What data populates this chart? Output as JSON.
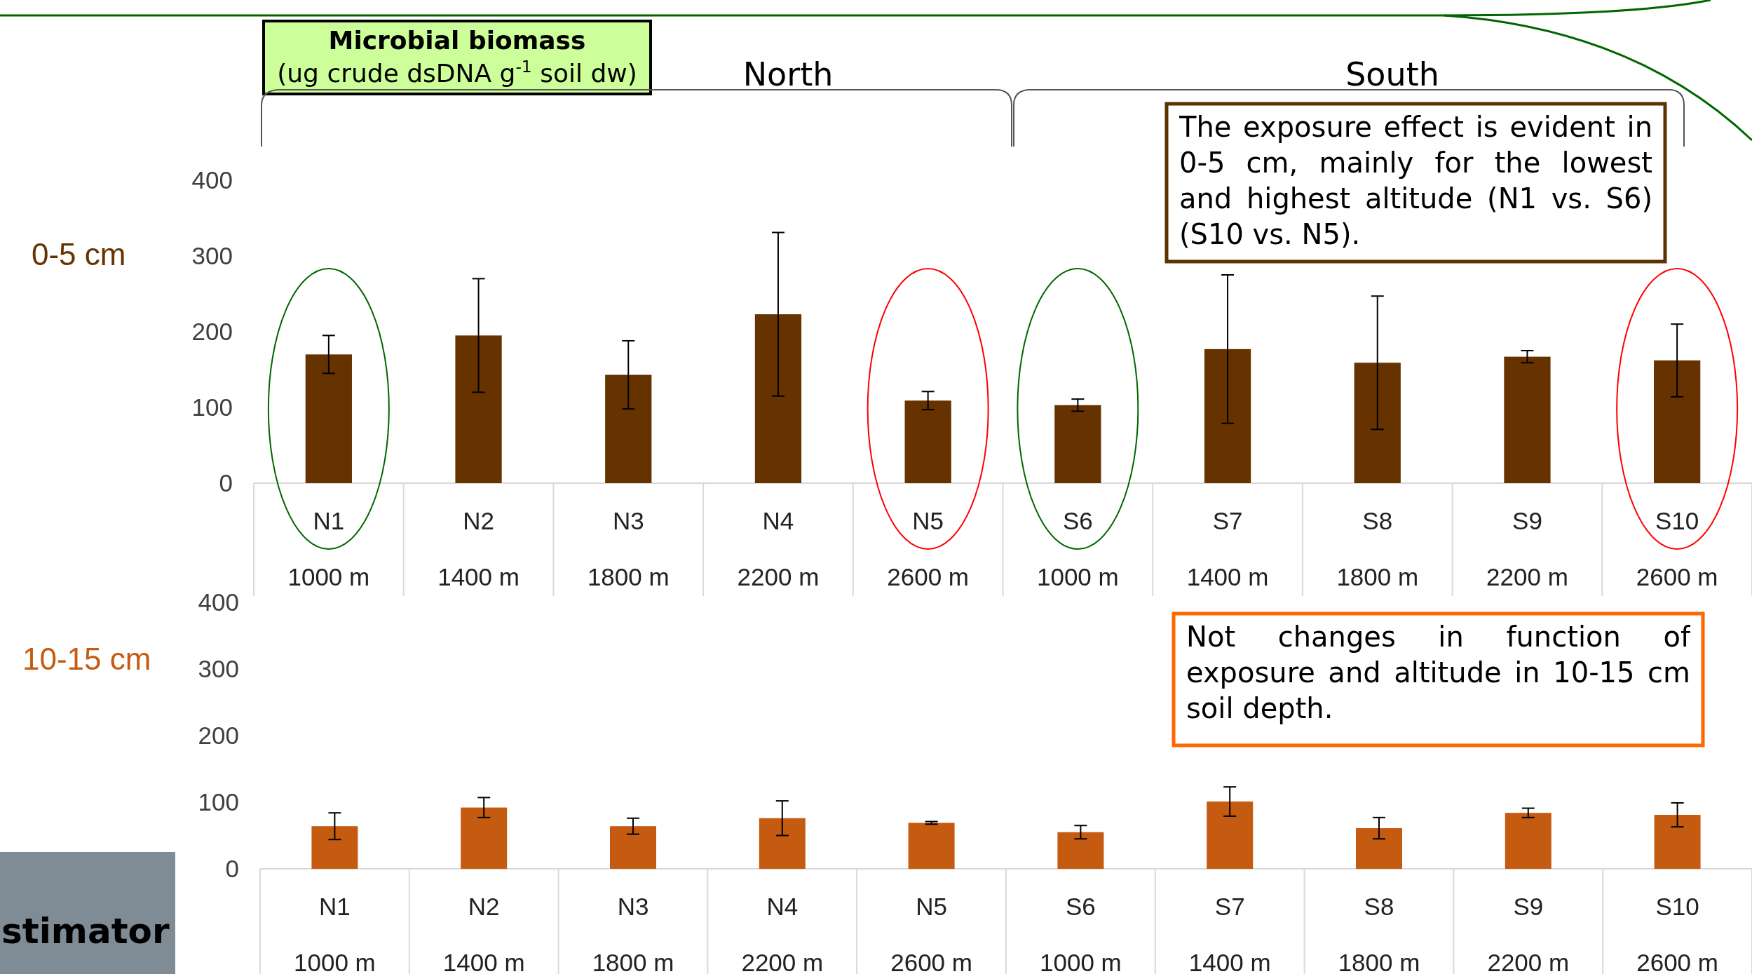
{
  "chart_data": [
    {
      "type": "bar",
      "title": "Microbial biomass",
      "subtitle": "(ug crude dsDNA g$^{-1}$ soil dw)",
      "ylabel": "0-5 cm",
      "categories": [
        "N1\n1000 m",
        "N2\n1400 m",
        "N3\n1800 m",
        "N4\n2200 m",
        "N5\n2600 m",
        "S6\n1000 m",
        "S7\n1400 m",
        "S8\n1800 m",
        "S9\n2200 m",
        "S10\n2600 m"
      ],
      "values": [
        170,
        195,
        143,
        223,
        109,
        103,
        177,
        159,
        167,
        162
      ],
      "errors": [
        25,
        75,
        45,
        108,
        12,
        8,
        98,
        88,
        8,
        48
      ],
      "color": "#663300",
      "ylim": [
        0,
        400
      ],
      "yticks": [
        0,
        100,
        200,
        300,
        400
      ],
      "grid": false,
      "annotations": [
        "North",
        "South",
        "The exposure effect is evident in 0-5 cm, mainly for the lowest and highest altitude (N1 vs. S6) (S10 vs. N5)."
      ]
    },
    {
      "type": "bar",
      "ylabel": "10-15 cm",
      "categories": [
        "N1\n1000 m",
        "N2\n1400 m",
        "N3\n1800 m",
        "N4\n2200 m",
        "N5\n2600 m",
        "S6\n1000 m",
        "S7\n1400 m",
        "S8\n1800 m",
        "S9\n2200 m",
        "S10\n2600 m"
      ],
      "values": [
        64,
        92,
        64,
        76,
        69,
        55,
        101,
        61,
        84,
        81
      ],
      "errors": [
        20,
        15,
        12,
        26,
        2,
        10,
        22,
        16,
        7,
        18
      ],
      "color": "#c55a11",
      "ylim": [
        0,
        400
      ],
      "yticks": [
        0,
        100,
        200,
        300,
        400
      ],
      "grid": false,
      "annotations": [
        "Not changes in function of exposure and altitude in 10-15 cm soil depth.",
        "stimator"
      ]
    }
  ]
}
